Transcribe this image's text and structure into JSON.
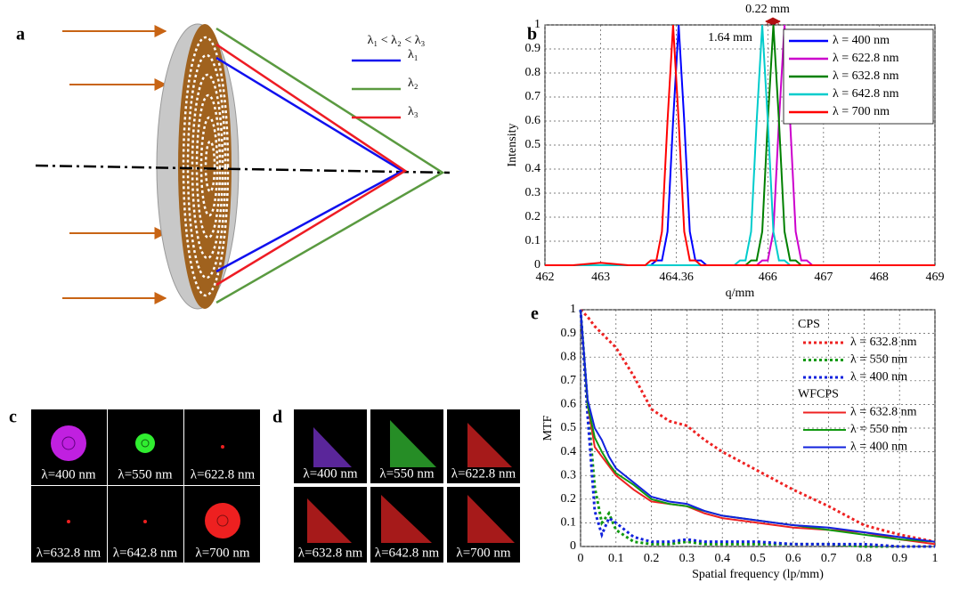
{
  "diagram": {
    "label": "a",
    "order": "λ₁ < λ₂ < λ₃",
    "rays": [
      {
        "name": "λ₁",
        "color": "#1010ee"
      },
      {
        "name": "λ₂",
        "color": "#5a9a40"
      },
      {
        "name": "λ₃",
        "color": "#ee1c24"
      }
    ]
  },
  "chart_data": [
    {
      "type": "line",
      "label": "b",
      "x_label": "q/mm",
      "y_label": "Intensity",
      "x": [
        462,
        462.5,
        463,
        463.5,
        463.7,
        463.8,
        463.9,
        464.0,
        464.1,
        464.2,
        464.3,
        464.4,
        464.5,
        464.6,
        464.7,
        464.8,
        464.9,
        465.0,
        465.1,
        465.2,
        465.3,
        465.4,
        465.5,
        465.6,
        465.7,
        465.8,
        465.9,
        466.0,
        466.1,
        466.2,
        466.3,
        466.4,
        466.5,
        466.6,
        466.7,
        466.8,
        466.9,
        467.0,
        467.5,
        468,
        468.5,
        469
      ],
      "xlim": [
        462,
        469
      ],
      "xticks": [
        462,
        463,
        464.36,
        466,
        467,
        468,
        469
      ],
      "ylim": [
        0,
        1
      ],
      "yticks": [
        0,
        0.1,
        0.2,
        0.3,
        0.4,
        0.5,
        0.6,
        0.7,
        0.8,
        0.9,
        1
      ],
      "grid": true,
      "legend": "upper right",
      "annotations": [
        "1.64 mm",
        "0.22 mm"
      ],
      "series": [
        {
          "name": "λ = 400 nm",
          "color": "#0000ff",
          "values": [
            0,
            0,
            0,
            0,
            0,
            0,
            0,
            0.02,
            0.02,
            0.14,
            0.6,
            1,
            0.6,
            0.14,
            0.02,
            0.02,
            0,
            0,
            0,
            0,
            0,
            0,
            0,
            0,
            0,
            0,
            0,
            0,
            0,
            0,
            0,
            0,
            0,
            0,
            0,
            0,
            0,
            0,
            0,
            0,
            0,
            0
          ]
        },
        {
          "name": "λ = 622.8 nm",
          "color": "#cc00cc",
          "values": [
            0,
            0,
            0,
            0,
            0,
            0,
            0,
            0,
            0,
            0,
            0,
            0,
            0,
            0,
            0,
            0,
            0,
            0,
            0,
            0,
            0,
            0,
            0,
            0,
            0,
            0,
            0.02,
            0.02,
            0.14,
            0.6,
            1,
            0.6,
            0.14,
            0.02,
            0.02,
            0,
            0,
            0,
            0,
            0,
            0,
            0
          ]
        },
        {
          "name": "λ = 632.8 nm",
          "color": "#008000",
          "values": [
            0,
            0,
            0,
            0,
            0,
            0,
            0,
            0,
            0,
            0,
            0,
            0,
            0,
            0,
            0,
            0,
            0,
            0,
            0,
            0,
            0,
            0,
            0,
            0,
            0.02,
            0.02,
            0.14,
            0.6,
            1,
            0.6,
            0.14,
            0.02,
            0.02,
            0,
            0,
            0,
            0,
            0,
            0,
            0,
            0,
            0
          ]
        },
        {
          "name": "λ = 642.8 nm",
          "color": "#00cccc",
          "values": [
            0,
            0,
            0,
            0,
            0,
            0,
            0,
            0,
            0,
            0,
            0,
            0,
            0,
            0,
            0,
            0,
            0,
            0,
            0,
            0,
            0,
            0,
            0.02,
            0.02,
            0.14,
            0.6,
            1,
            0.6,
            0.14,
            0.02,
            0.02,
            0,
            0,
            0,
            0,
            0,
            0,
            0,
            0,
            0,
            0,
            0
          ]
        },
        {
          "name": "λ = 700 nm",
          "color": "#ff0000",
          "values": [
            0,
            0,
            0.01,
            0,
            0,
            0,
            0.02,
            0.02,
            0.14,
            0.6,
            1,
            0.6,
            0.14,
            0.02,
            0.02,
            0,
            0,
            0,
            0,
            0,
            0,
            0,
            0,
            0,
            0,
            0,
            0,
            0,
            0,
            0,
            0,
            0,
            0,
            0,
            0,
            0,
            0,
            0,
            0,
            0,
            0,
            0
          ]
        }
      ]
    },
    {
      "type": "line",
      "label": "e",
      "x_label": "Spatial frequency (lp/mm)",
      "y_label": "MTF",
      "x": [
        0,
        0.02,
        0.04,
        0.06,
        0.08,
        0.1,
        0.15,
        0.2,
        0.25,
        0.3,
        0.35,
        0.4,
        0.5,
        0.6,
        0.7,
        0.8,
        0.9,
        1
      ],
      "xlim": [
        0,
        1
      ],
      "xticks": [
        0,
        0.1,
        0.2,
        0.3,
        0.4,
        0.5,
        0.6,
        0.7,
        0.8,
        0.9,
        1
      ],
      "ylim": [
        0,
        1
      ],
      "yticks": [
        0,
        0.1,
        0.2,
        0.3,
        0.4,
        0.5,
        0.6,
        0.7,
        0.8,
        0.9,
        1
      ],
      "grid": true,
      "legend_titles": [
        "CPS",
        "WFCPS"
      ],
      "series": [
        {
          "name": "λ = 632.8 nm",
          "group": 0,
          "linestyle": "dotted",
          "color": "#ee2222",
          "values": [
            1,
            0.97,
            0.93,
            0.9,
            0.87,
            0.84,
            0.72,
            0.58,
            0.53,
            0.51,
            0.45,
            0.4,
            0.32,
            0.24,
            0.17,
            0.09,
            0.05,
            0.02
          ]
        },
        {
          "name": "λ = 550 nm",
          "group": 0,
          "linestyle": "dotted",
          "color": "#119911",
          "values": [
            1,
            0.6,
            0.25,
            0.1,
            0.14,
            0.07,
            0.02,
            0.01,
            0.01,
            0.02,
            0.01,
            0.01,
            0.01,
            0.01,
            0.01,
            0,
            0,
            0
          ]
        },
        {
          "name": "λ = 400 nm",
          "group": 0,
          "linestyle": "dotted",
          "color": "#1122dd",
          "values": [
            1,
            0.55,
            0.15,
            0.05,
            0.12,
            0.1,
            0.04,
            0.02,
            0.02,
            0.03,
            0.02,
            0.02,
            0.02,
            0.01,
            0.01,
            0.01,
            0,
            0
          ]
        },
        {
          "name": "λ = 632.8 nm",
          "group": 1,
          "linestyle": "solid",
          "color": "#ee2222",
          "values": [
            1,
            0.6,
            0.42,
            0.38,
            0.34,
            0.3,
            0.24,
            0.19,
            0.18,
            0.17,
            0.14,
            0.12,
            0.1,
            0.08,
            0.07,
            0.06,
            0.03,
            0.01
          ]
        },
        {
          "name": "λ = 550 nm",
          "group": 1,
          "linestyle": "solid",
          "color": "#119911",
          "values": [
            1,
            0.6,
            0.46,
            0.4,
            0.35,
            0.31,
            0.26,
            0.2,
            0.18,
            0.17,
            0.15,
            0.13,
            0.11,
            0.09,
            0.07,
            0.05,
            0.03,
            0.02
          ]
        },
        {
          "name": "λ = 400 nm",
          "group": 1,
          "linestyle": "solid",
          "color": "#1122dd",
          "values": [
            1,
            0.62,
            0.5,
            0.45,
            0.38,
            0.33,
            0.27,
            0.21,
            0.19,
            0.18,
            0.15,
            0.13,
            0.11,
            0.09,
            0.08,
            0.06,
            0.04,
            0.02
          ]
        }
      ]
    }
  ],
  "images": [
    {
      "label": "c",
      "captions": [
        "λ=400 nm",
        "λ=550 nm",
        "λ=622.8 nm",
        "λ=632.8 nm",
        "λ=642.8 nm",
        "λ=700 nm"
      ]
    },
    {
      "label": "d",
      "captions": [
        "λ=400 nm",
        "λ=550 nm",
        "λ=622.8 nm",
        "λ=632.8 nm",
        "λ=642.8 nm",
        "λ=700 nm"
      ]
    }
  ]
}
